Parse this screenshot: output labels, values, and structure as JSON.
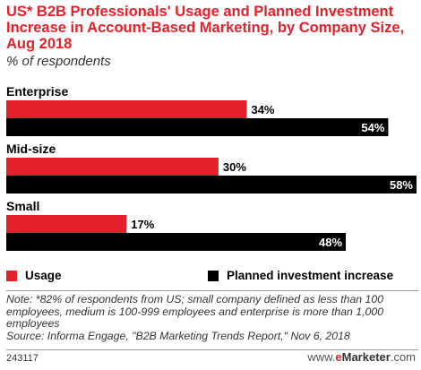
{
  "chart_data": {
    "type": "bar",
    "orientation": "horizontal",
    "title": "US* B2B Professionals' Usage and Planned Investment Increase in Account-Based Marketing, by Company Size, Aug 2018",
    "subtitle": "% of respondents",
    "categories": [
      "Enterprise",
      "Mid-size",
      "Small"
    ],
    "series": [
      {
        "name": "Usage",
        "color": "#e4202a",
        "values": [
          34,
          30,
          17
        ],
        "labels": [
          "34%",
          "30%",
          "17%"
        ]
      },
      {
        "name": "Planned investment increase",
        "color": "#000000",
        "values": [
          54,
          58,
          48
        ],
        "labels": [
          "54%",
          "58%",
          "48%"
        ]
      }
    ],
    "xlim": [
      0,
      58
    ],
    "grid": false,
    "legend_position": "bottom"
  },
  "note": "Note: *82% of respondents from US; small company defined as less than 100 employees, medium is 100-999 employees and enterprise is more than 1,000 employees",
  "source": "Source: Informa Engage, \"B2B Marketing Trends Report,\" Nov 6, 2018",
  "footer_id": "243117",
  "brand": {
    "prefix": "www.",
    "e": "e",
    "name": "Marketer",
    "suffix": ".com"
  }
}
